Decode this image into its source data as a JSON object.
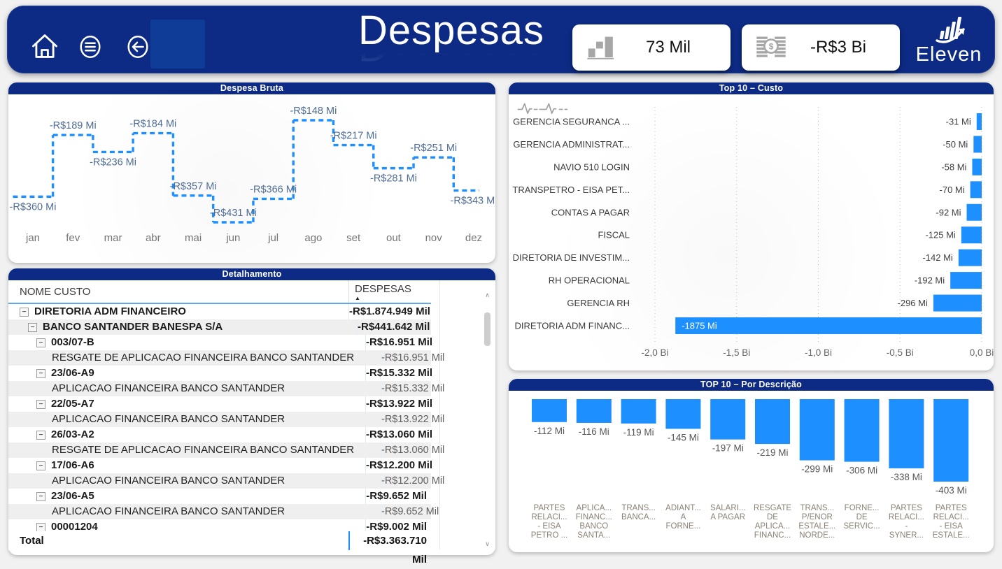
{
  "colors": {
    "navy": "#0d2b85",
    "accent_slab": "#0e3c96",
    "bar_blue": "#1e8fff",
    "page_bg": "#f1f1f1",
    "label_slate": "#4f6d96",
    "axis_gray": "#757575",
    "icon_gray": "#a6a6a6",
    "cat_gray": "#8a8175"
  },
  "header": {
    "title": "Despesas",
    "icons": [
      "home-icon",
      "menu-icon",
      "back-icon"
    ],
    "kpis": [
      {
        "icon": "bar-chart-icon",
        "value": "73 Mil"
      },
      {
        "icon": "coins-icon",
        "value": "-R$3 Bi"
      }
    ],
    "logo_text": "Eleven"
  },
  "panels": {
    "despesa_bruta_title": "Despesa Bruta",
    "detalhamento_title": "Detalhamento",
    "top10_custo_title": "Top 10 – Custo",
    "top10_descricao_title": "TOP 10 – Por Descrição"
  },
  "detalhamento": {
    "columns": [
      "NOME CUSTO",
      "DESPESAS"
    ],
    "sort_indicator": "▲",
    "collapse_glyph": "−",
    "scrollbar": {
      "up": "∧",
      "down": "∨"
    },
    "rows": [
      {
        "name": "DIRETORIA ADM FINANCEIRO",
        "value": "-R$1.874.949 Mil",
        "indent": 0,
        "expand": true,
        "bold": true,
        "shaded": false
      },
      {
        "name": "BANCO SANTANDER BANESPA S/A",
        "value": "-R$441.642 Mil",
        "indent": 1,
        "expand": true,
        "bold": true,
        "shaded": true
      },
      {
        "name": "003/07-B",
        "value": "-R$16.951 Mil",
        "indent": 2,
        "expand": true,
        "bold": true,
        "shaded": false
      },
      {
        "name": "RESGATE DE APLICACAO FINANCEIRA BANCO SANTANDER",
        "value": "-R$16.951 Mil",
        "indent": 3,
        "expand": false,
        "bold": false,
        "shaded": true
      },
      {
        "name": "23/06-A9",
        "value": "-R$15.332 Mil",
        "indent": 2,
        "expand": true,
        "bold": true,
        "shaded": false
      },
      {
        "name": "APLICACAO FINANCEIRA BANCO SANTANDER",
        "value": "-R$15.332 Mil",
        "indent": 3,
        "expand": false,
        "bold": false,
        "shaded": true
      },
      {
        "name": "22/05-A7",
        "value": "-R$13.922 Mil",
        "indent": 2,
        "expand": true,
        "bold": true,
        "shaded": false
      },
      {
        "name": "APLICACAO FINANCEIRA BANCO SANTANDER",
        "value": "-R$13.922 Mil",
        "indent": 3,
        "expand": false,
        "bold": false,
        "shaded": true
      },
      {
        "name": "26/03-A2",
        "value": "-R$13.060 Mil",
        "indent": 2,
        "expand": true,
        "bold": true,
        "shaded": false
      },
      {
        "name": "RESGATE DE APLICACAO FINANCEIRA BANCO SANTANDER",
        "value": "-R$13.060 Mil",
        "indent": 3,
        "expand": false,
        "bold": false,
        "shaded": true
      },
      {
        "name": "17/06-A6",
        "value": "-R$12.200 Mil",
        "indent": 2,
        "expand": true,
        "bold": true,
        "shaded": false
      },
      {
        "name": "APLICACAO FINANCEIRA BANCO SANTANDER",
        "value": "-R$12.200 Mil",
        "indent": 3,
        "expand": false,
        "bold": false,
        "shaded": true
      },
      {
        "name": "23/06-A5",
        "value": "-R$9.652 Mil",
        "indent": 2,
        "expand": true,
        "bold": true,
        "shaded": false
      },
      {
        "name": "APLICACAO FINANCEIRA BANCO SANTANDER",
        "value": "-R$9.652 Mil",
        "indent": 3,
        "expand": false,
        "bold": false,
        "shaded": true
      },
      {
        "name": "00001204",
        "value": "-R$9.002 Mil",
        "indent": 2,
        "expand": true,
        "bold": true,
        "shaded": false
      }
    ],
    "total": {
      "label": "Total",
      "value": "-R$3.363.710 Mil"
    }
  },
  "chart_data": [
    {
      "id": "despesa_bruta",
      "type": "line",
      "subtype": "stepped-dashed",
      "title": "Despesa Bruta",
      "categories": [
        "jan",
        "fev",
        "mar",
        "abr",
        "mai",
        "jun",
        "jul",
        "ago",
        "set",
        "out",
        "nov",
        "dez"
      ],
      "values_mi": [
        -360,
        -189,
        -236,
        -184,
        -357,
        -431,
        -366,
        -148,
        -217,
        -281,
        -251,
        -343
      ],
      "labels": [
        "-R$360 Mi",
        "-R$189 Mi",
        "-R$236 Mi",
        "-R$184 Mi",
        "-R$357 Mi",
        "-R$431 Mi",
        "-R$366 Mi",
        "-R$148 Mi",
        "-R$217 Mi",
        "-R$281 Mi",
        "-R$251 Mi",
        "-R$343 Mi"
      ],
      "label_side": [
        "below",
        "above",
        "below",
        "above",
        "above",
        "above",
        "above",
        "above",
        "above",
        "below",
        "above",
        "below"
      ],
      "line_color": "#1e8fff",
      "grid": false,
      "legend": "none"
    },
    {
      "id": "top10_custo",
      "type": "bar",
      "orientation": "horizontal",
      "title": "Top 10 – Custo",
      "categories": [
        "GERENCIA SEGURANCA ...",
        "GERENCIA ADMINISTRAT...",
        "NAVIO 510 LOGIN",
        "TRANSPETRO - EISA PET...",
        "CONTAS A PAGAR",
        "FISCAL",
        "DIRETORIA DE INVESTIM...",
        "RH OPERACIONAL",
        "GERENCIA RH",
        "DIRETORIA ADM FINANC..."
      ],
      "values_mi": [
        -31,
        -50,
        -58,
        -70,
        -92,
        -125,
        -142,
        -192,
        -296,
        -1875
      ],
      "labels": [
        "-31 Mi",
        "-50 Mi",
        "-58 Mi",
        "-70 Mi",
        "-92 Mi",
        "-125 Mi",
        "-142 Mi",
        "-192 Mi",
        "-296 Mi",
        "-1875 Mi"
      ],
      "x_ticks": [
        {
          "value_bi": -2.0,
          "label": "-2,0 Bi"
        },
        {
          "value_bi": -1.5,
          "label": "-1,5 Bi"
        },
        {
          "value_bi": -1.0,
          "label": "-1,0 Bi"
        },
        {
          "value_bi": -0.5,
          "label": "-0,5 Bi"
        },
        {
          "value_bi": 0.0,
          "label": "0,0 Bi"
        }
      ],
      "xlim_bi": [
        -2.0,
        0.0
      ],
      "bar_color": "#1e8fff",
      "grid": "dotted-vertical",
      "legend": "none"
    },
    {
      "id": "top10_descricao",
      "type": "bar",
      "orientation": "vertical",
      "title": "TOP 10 – Por Descrição",
      "categories": [
        [
          "PARTES",
          "RELACI...",
          "- EISA",
          "PETRO ..."
        ],
        [
          "APLICA...",
          "FINANC...",
          "BANCO",
          "SANTA..."
        ],
        [
          "TRANS...",
          "BANCA..."
        ],
        [
          "ADIANT...",
          "A",
          "FORNE..."
        ],
        [
          "SALARI...",
          "A PAGAR"
        ],
        [
          "RESGATE",
          "DE",
          "APLICA...",
          "FINANC..."
        ],
        [
          "TRANS...",
          "P/ENOR",
          "ESTALE...",
          "NORDE..."
        ],
        [
          "FORNE...",
          "DE",
          "SERVIC..."
        ],
        [
          "PARTES",
          "RELACI...",
          "-",
          "SYNER..."
        ],
        [
          "PARTES",
          "RELACI...",
          "- EISA",
          "ESTALE..."
        ]
      ],
      "values_mi": [
        -112,
        -116,
        -119,
        -145,
        -197,
        -219,
        -299,
        -306,
        -338,
        -403
      ],
      "labels": [
        "-112 Mi",
        "-116 Mi",
        "-119 Mi",
        "-145 Mi",
        "-197 Mi",
        "-219 Mi",
        "-299 Mi",
        "-306 Mi",
        "-338 Mi",
        "-403 Mi"
      ],
      "bar_color": "#1e8fff",
      "grid": false,
      "legend": "none"
    }
  ]
}
